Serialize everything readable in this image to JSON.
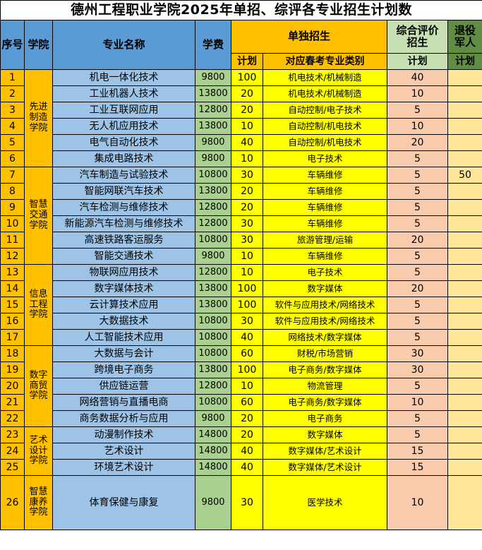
{
  "title": "德州工程职业学院2025年单招、综评各专业招生计划数",
  "header": {
    "no": "序号",
    "college": "学院",
    "major": "专业名称",
    "tuition": "学费",
    "single_enrollment": "单独招生",
    "single_plan": "计划",
    "spring_exam_category": "对应春考专业类别",
    "comprehensive_evaluation": "综合评价\n招生",
    "comp_plan": "计划",
    "veteran": "退役\n军人",
    "veteran_plan": "计划"
  },
  "colleges": [
    {
      "name": "先进\n制造\n学院",
      "start": 0,
      "span": 6
    },
    {
      "name": "智慧\n交通\n学院",
      "start": 6,
      "span": 6
    },
    {
      "name": "信息\n工程\n学院",
      "start": 12,
      "span": 5
    },
    {
      "name": "数字\n商贸\n学院",
      "start": 17,
      "span": 5
    },
    {
      "name": "艺术\n设计\n学院",
      "start": 22,
      "span": 3
    },
    {
      "name": "智慧\n康养\n学院",
      "start": 25,
      "span": 1
    }
  ],
  "rows": [
    {
      "no": "1",
      "major": "机电一体化技术",
      "tuition": "9800",
      "plan": "100",
      "category": "机电技术/机械制造",
      "comp": "40",
      "vet": ""
    },
    {
      "no": "2",
      "major": "工业机器人技术",
      "tuition": "13800",
      "plan": "20",
      "category": "机电技术/机械制造",
      "comp": "10",
      "vet": ""
    },
    {
      "no": "3",
      "major": "工业互联网应用",
      "tuition": "12800",
      "plan": "20",
      "category": "自动控制/电子技术",
      "comp": "5",
      "vet": ""
    },
    {
      "no": "4",
      "major": "无人机应用技术",
      "tuition": "13800",
      "plan": "10",
      "category": "自动控制/机电技术",
      "comp": "10",
      "vet": ""
    },
    {
      "no": "5",
      "major": "电气自动化技术",
      "tuition": "9800",
      "plan": "40",
      "category": "自动控制/机电技术",
      "comp": "20",
      "vet": ""
    },
    {
      "no": "6",
      "major": "集成电路技术",
      "tuition": "9800",
      "plan": "10",
      "category": "电子技术",
      "comp": "5",
      "vet": ""
    },
    {
      "no": "7",
      "major": "汽车制造与试验技术",
      "tuition": "10800",
      "plan": "30",
      "category": "车辆维修",
      "comp": "5",
      "vet": "50"
    },
    {
      "no": "8",
      "major": "智能网联汽车技术",
      "tuition": "13800",
      "plan": "20",
      "category": "车辆维修",
      "comp": "5",
      "vet": ""
    },
    {
      "no": "9",
      "major": "汽车检测与维修技术",
      "tuition": "12800",
      "plan": "20",
      "category": "车辆维修",
      "comp": "5",
      "vet": ""
    },
    {
      "no": "10",
      "major": "新能源汽车检测与维修技术",
      "tuition": "12800",
      "plan": "30",
      "category": "车辆维修",
      "comp": "5",
      "vet": ""
    },
    {
      "no": "11",
      "major": "高速铁路客运服务",
      "tuition": "10800",
      "plan": "30",
      "category": "旅游管理/运输",
      "comp": "20",
      "vet": ""
    },
    {
      "no": "12",
      "major": "智能交通技术",
      "tuition": "9800",
      "plan": "10",
      "category": "车辆维修",
      "comp": "5",
      "vet": ""
    },
    {
      "no": "13",
      "major": "物联网应用技术",
      "tuition": "12800",
      "plan": "10",
      "category": "电子技术",
      "comp": "5",
      "vet": ""
    },
    {
      "no": "14",
      "major": "数字媒体技术",
      "tuition": "13800",
      "plan": "100",
      "category": "数字媒体",
      "comp": "20",
      "vet": ""
    },
    {
      "no": "15",
      "major": "云计算技术应用",
      "tuition": "13800",
      "plan": "100",
      "category": "软件与应用技术/网络技术",
      "comp": "5",
      "vet": ""
    },
    {
      "no": "16",
      "major": "大数据技术",
      "tuition": "10800",
      "plan": "30",
      "category": "软件与应用技术/网络技术",
      "comp": "5",
      "vet": ""
    },
    {
      "no": "17",
      "major": "人工智能技术应用",
      "tuition": "10800",
      "plan": "40",
      "category": "网络技术/数字媒体",
      "comp": "5",
      "vet": ""
    },
    {
      "no": "18",
      "major": "大数据与会计",
      "tuition": "10800",
      "plan": "60",
      "category": "财税/市场营销",
      "comp": "30",
      "vet": ""
    },
    {
      "no": "19",
      "major": "跨境电子商务",
      "tuition": "13800",
      "plan": "100",
      "category": "电子商务/数字媒体",
      "comp": "30",
      "vet": ""
    },
    {
      "no": "20",
      "major": "供应链运营",
      "tuition": "12800",
      "plan": "10",
      "category": "物流管理",
      "comp": "5",
      "vet": ""
    },
    {
      "no": "21",
      "major": "网络营销与直播电商",
      "tuition": "10800",
      "plan": "60",
      "category": "电子商务/数字媒体",
      "comp": "10",
      "vet": ""
    },
    {
      "no": "22",
      "major": "商务数据分析与应用",
      "tuition": "9800",
      "plan": "20",
      "category": "电子商务",
      "comp": "5",
      "vet": ""
    },
    {
      "no": "23",
      "major": "动漫制作技术",
      "tuition": "14800",
      "plan": "20",
      "category": "数字媒体",
      "comp": "5",
      "vet": ""
    },
    {
      "no": "24",
      "major": "艺术设计",
      "tuition": "14800",
      "plan": "40",
      "category": "数字媒体/艺术设计",
      "comp": "15",
      "vet": ""
    },
    {
      "no": "25",
      "major": "环境艺术设计",
      "tuition": "14800",
      "plan": "40",
      "category": "数字媒体/艺术设计",
      "comp": "15",
      "vet": ""
    },
    {
      "no": "26",
      "major": "体育保健与康复",
      "tuition": "9800",
      "plan": "30",
      "category": "医学技术",
      "comp": "10",
      "vet": ""
    }
  ],
  "colors": {
    "header_blue": "#5B9BD5",
    "header_orange": "#FFC000",
    "header_light_green": "#C6E0B4",
    "header_dark_green": "#618C44",
    "major_blue": "#9DC3E6",
    "tuition_green": "#A9D08E",
    "plan_yellow": "#FFFF00",
    "comp_salmon": "#F8CBAD",
    "veteran_cream": "#FFE699",
    "border": "#000000"
  }
}
